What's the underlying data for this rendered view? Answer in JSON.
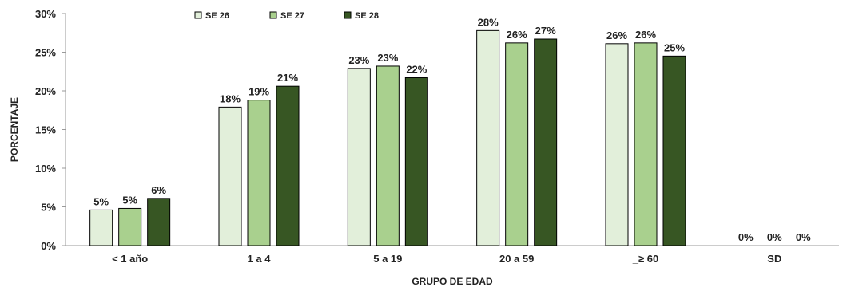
{
  "chart_data": {
    "type": "bar",
    "title": "",
    "xlabel": "GRUPO DE EDAD",
    "ylabel": "PORCENTAJE",
    "ylim": [
      0,
      30
    ],
    "yticks": [
      0,
      5,
      10,
      15,
      20,
      25,
      30
    ],
    "ytick_labels": [
      "0%",
      "5%",
      "10%",
      "15%",
      "20%",
      "25%",
      "30%"
    ],
    "grid": false,
    "legend_position": "top-left",
    "categories": [
      "< 1 año",
      "1 a 4",
      "5 a 19",
      "20 a 59",
      "_≥ 60",
      "SD"
    ],
    "series": [
      {
        "name": "SE 26",
        "color": "#e2efda",
        "values": [
          4.6,
          17.9,
          22.9,
          27.8,
          26.1,
          0
        ],
        "labels": [
          "5%",
          "18%",
          "23%",
          "28%",
          "26%",
          "0%"
        ]
      },
      {
        "name": "SE 27",
        "color": "#a9d08e",
        "values": [
          4.8,
          18.8,
          23.2,
          26.2,
          26.2,
          0
        ],
        "labels": [
          "5%",
          "19%",
          "23%",
          "26%",
          "26%",
          "0%"
        ]
      },
      {
        "name": "SE 28",
        "color": "#375623",
        "values": [
          6.1,
          20.6,
          21.7,
          26.7,
          24.5,
          0
        ],
        "labels": [
          "6%",
          "21%",
          "22%",
          "27%",
          "25%",
          "0%"
        ]
      }
    ]
  }
}
